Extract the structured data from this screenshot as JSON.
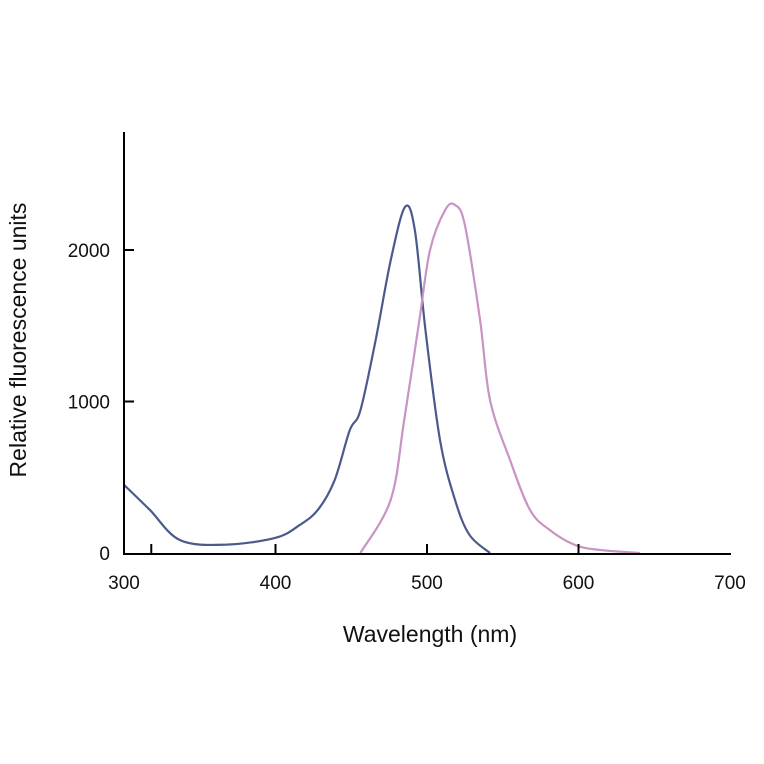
{
  "chart_data": {
    "type": "line",
    "title": "",
    "xlabel": "Wavelength (nm)",
    "ylabel": "Relative fluorescence units",
    "xlim": [
      300,
      700
    ],
    "ylim": [
      0,
      2780
    ],
    "x_ticks": [
      300,
      400,
      500,
      600,
      700
    ],
    "x_tick_marks": [
      318,
      400,
      500,
      600
    ],
    "y_ticks": [
      0,
      1000,
      2000
    ],
    "y_tick_marks": [
      1000,
      2000
    ],
    "grid": false,
    "series": [
      {
        "color": "#4b5a8c",
        "x": [
          300,
          317,
          337,
          367,
          400,
          416,
          428,
          439,
          449,
          456,
          466,
          476,
          485.5,
          492,
          499,
          508.6,
          518.5,
          528,
          541.6
        ],
        "y": [
          450,
          285,
          85,
          55,
          100,
          185,
          285,
          480,
          810,
          940,
          1400,
          1930,
          2284,
          2130,
          1470,
          745,
          350,
          120,
          0
        ]
      },
      {
        "color": "#c993c3",
        "x": [
          456,
          476,
          485,
          495,
          502,
          512,
          518.5,
          525,
          535,
          541.6,
          554.8,
          568,
          581,
          597.7,
          614,
          640.6
        ],
        "y": [
          0,
          350,
          880,
          1540,
          2000,
          2264,
          2297,
          2165,
          1540,
          1010,
          614,
          284,
          152,
          53,
          20,
          0
        ]
      }
    ]
  }
}
